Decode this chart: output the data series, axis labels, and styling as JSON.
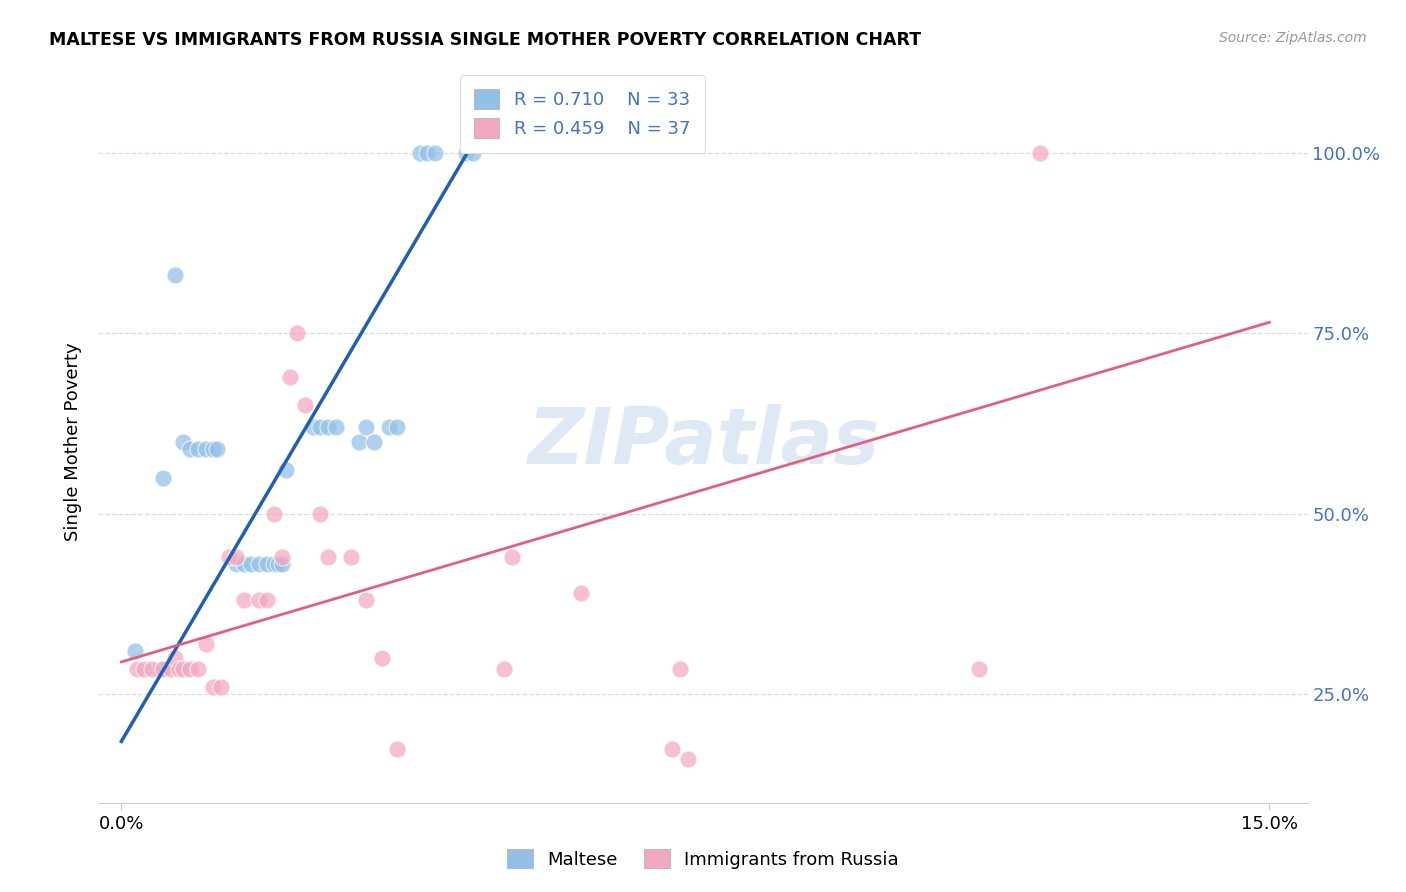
{
  "title": "MALTESE VS IMMIGRANTS FROM RUSSIA SINGLE MOTHER POVERTY CORRELATION CHART",
  "source": "Source: ZipAtlas.com",
  "ylabel": "Single Mother Poverty",
  "ytick_vals": [
    0.25,
    0.5,
    0.75,
    1.0
  ],
  "ytick_labels": [
    "25.0%",
    "50.0%",
    "75.0%",
    "100.0%"
  ],
  "xtick_labels": [
    "0.0%",
    "15.0%"
  ],
  "legend_labels": [
    "Maltese",
    "Immigrants from Russia"
  ],
  "R_maltese": "0.710",
  "N_maltese": "33",
  "R_russia": "0.459",
  "N_russia": "37",
  "watermark": "ZIPatlas",
  "blue_scatter_color": "#92c0e8",
  "pink_scatter_color": "#f4a8c0",
  "blue_line_color": "#2060b0",
  "pink_line_color": "#e06080",
  "grid_color": "#d8d8e8",
  "axis_tick_color": "#4472c4",
  "maltese_x": [
    0.18,
    0.5,
    0.55,
    0.7,
    0.8,
    0.9,
    1.0,
    1.1,
    1.2,
    1.25,
    1.5,
    1.6,
    1.7,
    1.8,
    1.9,
    2.0,
    2.05,
    2.1,
    2.15,
    2.5,
    2.6,
    2.7,
    2.8,
    3.1,
    3.2,
    3.3,
    3.5,
    3.6,
    3.9,
    4.0,
    4.1,
    4.5,
    4.6
  ],
  "maltese_y": [
    0.31,
    0.285,
    0.55,
    0.83,
    0.6,
    0.59,
    0.59,
    0.59,
    0.59,
    0.59,
    0.43,
    0.43,
    0.43,
    0.43,
    0.43,
    0.43,
    0.43,
    0.43,
    0.56,
    0.62,
    0.62,
    0.62,
    0.62,
    0.6,
    0.62,
    0.6,
    0.62,
    0.62,
    1.0,
    1.0,
    1.0,
    1.0,
    1.0
  ],
  "russia_x": [
    0.2,
    0.3,
    0.4,
    0.55,
    0.65,
    0.7,
    0.75,
    0.8,
    0.9,
    1.0,
    1.1,
    1.2,
    1.3,
    1.4,
    1.5,
    1.6,
    1.8,
    1.9,
    2.0,
    2.1,
    2.2,
    2.3,
    2.4,
    2.6,
    2.7,
    3.0,
    3.2,
    3.4,
    3.6,
    5.0,
    5.1,
    6.0,
    7.2,
    7.3,
    7.4,
    11.2,
    12.0
  ],
  "russia_y": [
    0.285,
    0.285,
    0.285,
    0.285,
    0.285,
    0.3,
    0.285,
    0.285,
    0.285,
    0.285,
    0.32,
    0.26,
    0.26,
    0.44,
    0.44,
    0.38,
    0.38,
    0.38,
    0.5,
    0.44,
    0.69,
    0.75,
    0.65,
    0.5,
    0.44,
    0.44,
    0.38,
    0.3,
    0.175,
    0.285,
    0.44,
    0.39,
    0.175,
    0.285,
    0.16,
    0.285,
    1.0
  ],
  "blue_trendline_x": [
    0.0,
    4.8
  ],
  "blue_trendline_y": [
    0.185,
    1.05
  ],
  "pink_trendline_x": [
    0.0,
    15.0
  ],
  "pink_trendline_y": [
    0.295,
    0.765
  ],
  "xlim": [
    -0.3,
    15.5
  ],
  "ylim": [
    0.1,
    1.1
  ]
}
